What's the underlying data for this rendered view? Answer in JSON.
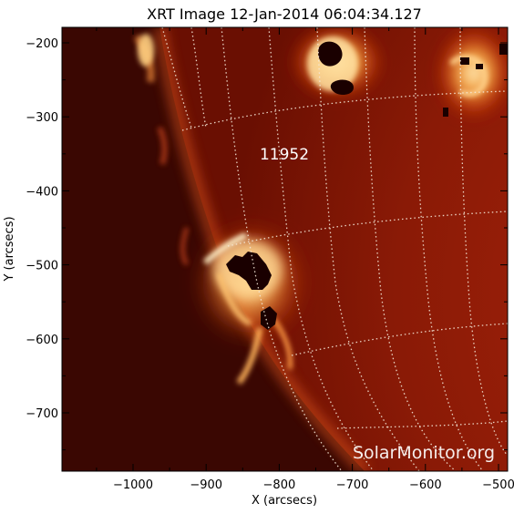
{
  "title": "XRT Image 12-Jan-2014 06:04:34.127",
  "x_axis": {
    "label": "X (arcsecs)",
    "ticks": [
      -1000,
      -900,
      -800,
      -700,
      -600,
      -500
    ]
  },
  "y_axis": {
    "label": "Y (arcsecs)",
    "ticks": [
      -200,
      -300,
      -400,
      -500,
      -600,
      -700
    ]
  },
  "tick_labels": {
    "x": [
      "−1000",
      "−900",
      "−800",
      "−700",
      "−600",
      "−500"
    ],
    "y": [
      "−200",
      "−300",
      "−400",
      "−500",
      "−600",
      "−700"
    ]
  },
  "region_label": "11952",
  "watermark": "SolarMonitor.org",
  "colors": {
    "background": "#ffffff",
    "space": "#2b0400",
    "disk": "#7a1204",
    "bright": "#ffe6a8",
    "grid": "#f5e8d8"
  }
}
